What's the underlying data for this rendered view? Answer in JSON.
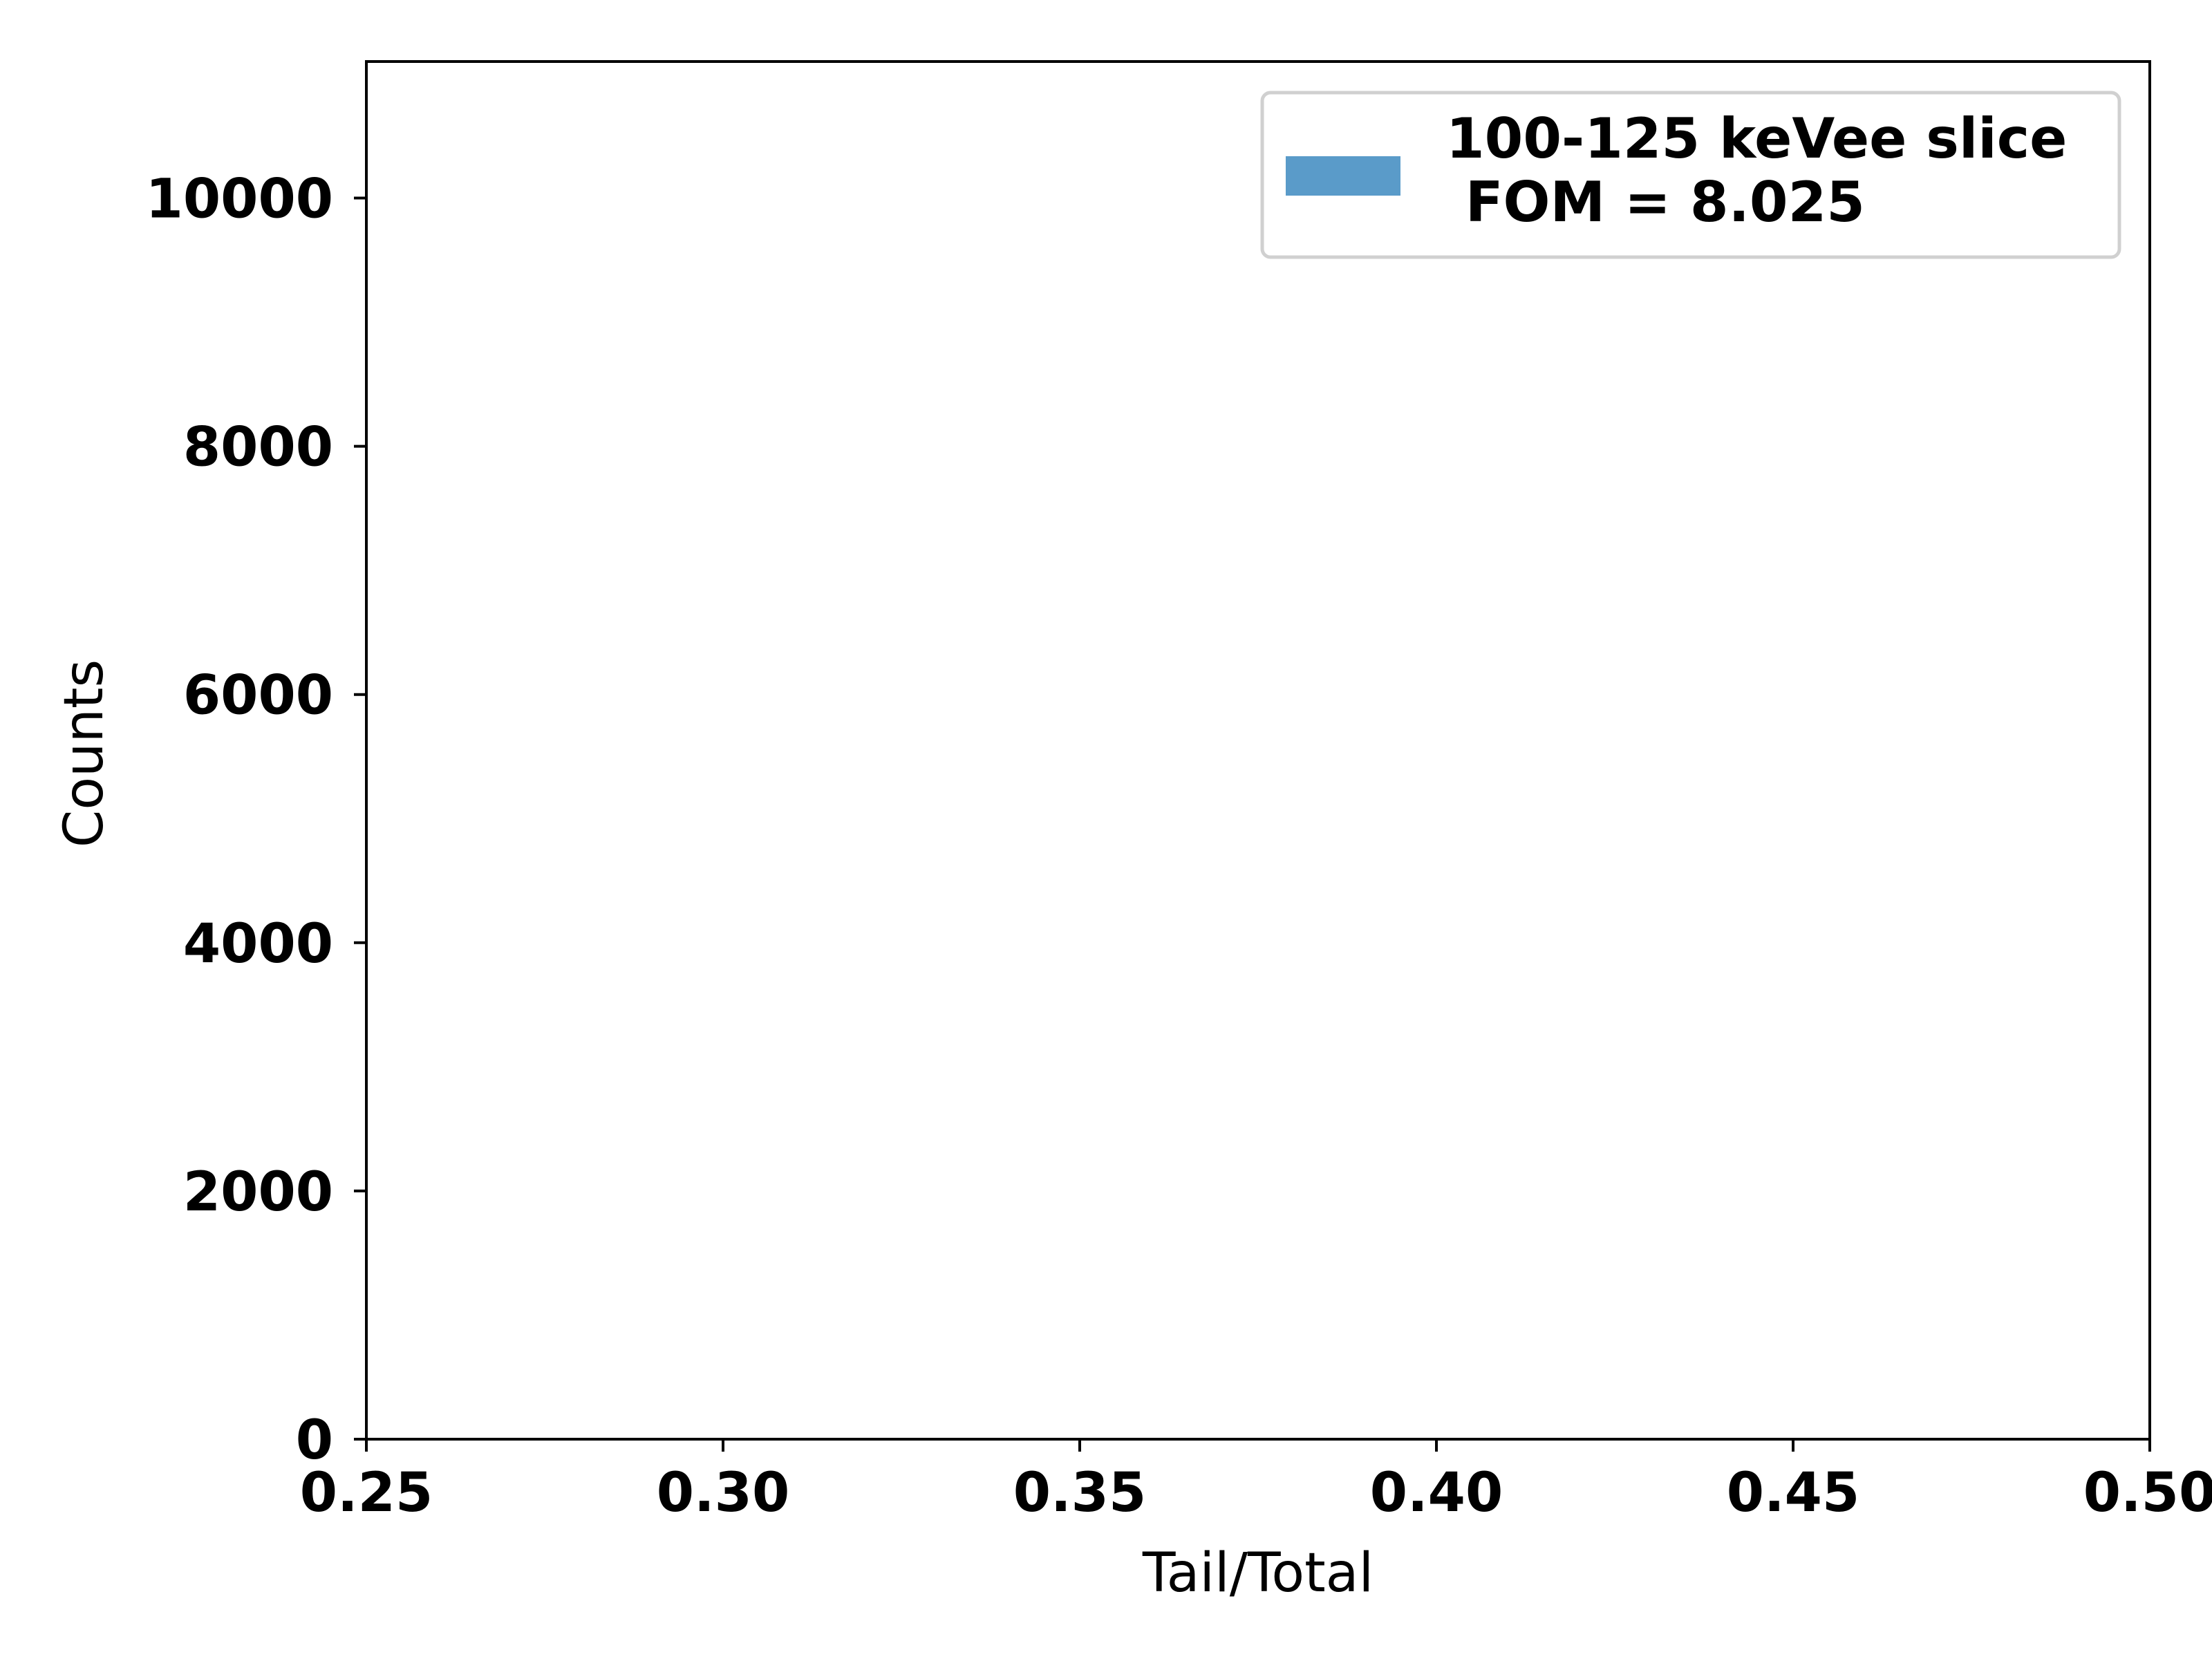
{
  "chart_data": {
    "type": "area",
    "title": "",
    "xlabel": "Tail/Total",
    "ylabel": "Counts",
    "xlim": [
      0.25,
      0.5
    ],
    "ylim": [
      0,
      11100
    ],
    "xticks": [
      0.25,
      0.3,
      0.35,
      0.4,
      0.45,
      0.5
    ],
    "xtick_labels": [
      "0.25",
      "0.30",
      "0.35",
      "0.40",
      "0.45",
      "0.50"
    ],
    "yticks": [
      0,
      2000,
      4000,
      6000,
      8000,
      10000
    ],
    "ytick_labels": [
      "0",
      "2000",
      "4000",
      "6000",
      "8000",
      "10000"
    ],
    "grid": false,
    "legend_position": "top-right",
    "series": [
      {
        "name": "100-125 keVee slice\n FOM = 8.025",
        "legend_lines": [
          "100-125 keVee slice",
          " FOM = 8.025"
        ],
        "color": "#5a9bc9",
        "edge_color": "#1a1a8c",
        "x": [
          0.25,
          0.3,
          0.35,
          0.4,
          0.45,
          0.4965
        ],
        "values": [
          0,
          0,
          0,
          0,
          0,
          0
        ]
      }
    ]
  }
}
